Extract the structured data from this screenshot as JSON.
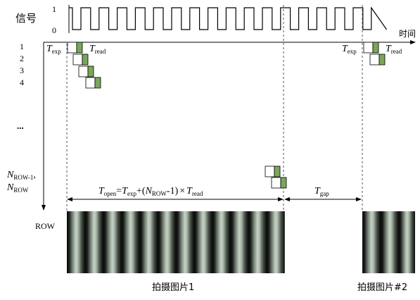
{
  "signal": {
    "label": "信号",
    "level_high": "1",
    "level_low": "0",
    "time_label": "时间"
  },
  "rows": {
    "indices": [
      "1",
      "2",
      "3",
      "4"
    ],
    "ellipsis": "...",
    "n_row_minus_1": {
      "base": "N",
      "sub": "ROW-1",
      "suffix": ","
    },
    "n_row": {
      "base": "N",
      "sub": "ROW"
    },
    "row_label": "ROW"
  },
  "timing": {
    "t_exp": {
      "base": "T",
      "sub": "exp"
    },
    "t_read": {
      "base": "T",
      "sub": "read"
    },
    "t_gap": {
      "base": "T",
      "sub": "gap"
    },
    "t_open_formula": {
      "lhs_base": "T",
      "lhs_sub": "open",
      "eq": "=",
      "t1_base": "T",
      "t1_sub": "exp",
      "plus_open": "+(",
      "n_base": "N",
      "n_sub": "ROW",
      "minus_one_close": "-1)",
      "times": "×",
      "t2_base": "T",
      "t2_sub": "read"
    }
  },
  "captions": {
    "image1": "拍摄图片1",
    "image2": "拍摄图片#2"
  },
  "colors": {
    "line": "#000000",
    "dash": "#555555",
    "read_green": "#7aa65a",
    "exp_box": "#ffffff"
  }
}
